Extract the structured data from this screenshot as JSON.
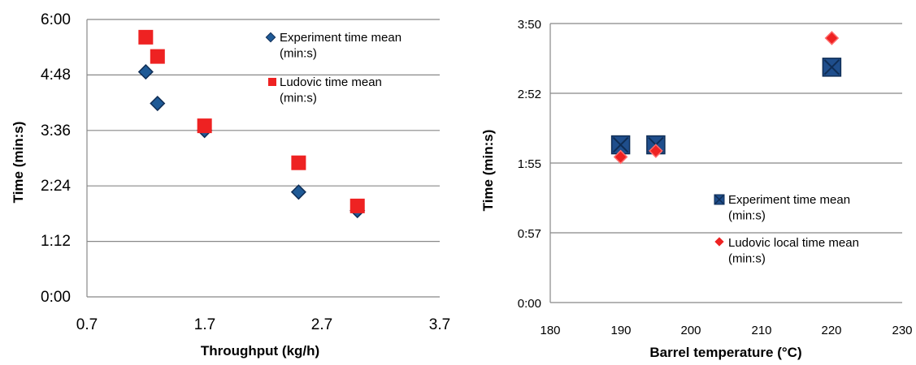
{
  "chart_data": [
    {
      "type": "scatter",
      "title": "",
      "xlabel": "Throughput (kg/h)",
      "ylabel": "Time (min:s)",
      "xlim": [
        0.7,
        3.7
      ],
      "x_ticks": [
        "0.7",
        "1.7",
        "2.7",
        "3.7"
      ],
      "ylim": [
        0,
        360
      ],
      "y_ticks": [
        "0:00",
        "1:12",
        "2:24",
        "3:36",
        "4:48",
        "6:00"
      ],
      "grid": "horizontal",
      "legend_position": "top-right",
      "series": [
        {
          "name": "Experiment time mean (min:s)",
          "marker": "diamond",
          "color": "#1f5a96",
          "x": [
            1.2,
            1.3,
            1.7,
            2.5,
            3.0
          ],
          "y": [
            292,
            251,
            216,
            136,
            112
          ]
        },
        {
          "name": "Ludovic time mean (min:s)",
          "marker": "square",
          "color": "#ee2222",
          "x": [
            1.2,
            1.3,
            1.7,
            2.5,
            3.0
          ],
          "y": [
            337,
            312,
            222,
            174,
            118
          ]
        }
      ]
    },
    {
      "type": "scatter",
      "title": "",
      "xlabel": "Barrel temperature (°C)",
      "ylabel": "Time (min:s)",
      "xlim": [
        180,
        230
      ],
      "x_ticks": [
        "180",
        "190",
        "200",
        "210",
        "220",
        "230"
      ],
      "ylim": [
        0,
        230
      ],
      "y_ticks": [
        "0:00",
        "0:57",
        "1:55",
        "2:52",
        "3:50"
      ],
      "grid": "horizontal",
      "legend_position": "bottom-right",
      "series": [
        {
          "name": "Experiment time mean (min:s)",
          "marker": "square-x",
          "color": "#1f4e8c",
          "x": [
            190,
            195,
            220
          ],
          "y": [
            130,
            130,
            194
          ]
        },
        {
          "name": "Ludovic local time mean (min:s)",
          "marker": "diamond",
          "color": "#ee2222",
          "x": [
            190,
            195,
            220
          ],
          "y": [
            120,
            125,
            218
          ]
        }
      ]
    }
  ]
}
